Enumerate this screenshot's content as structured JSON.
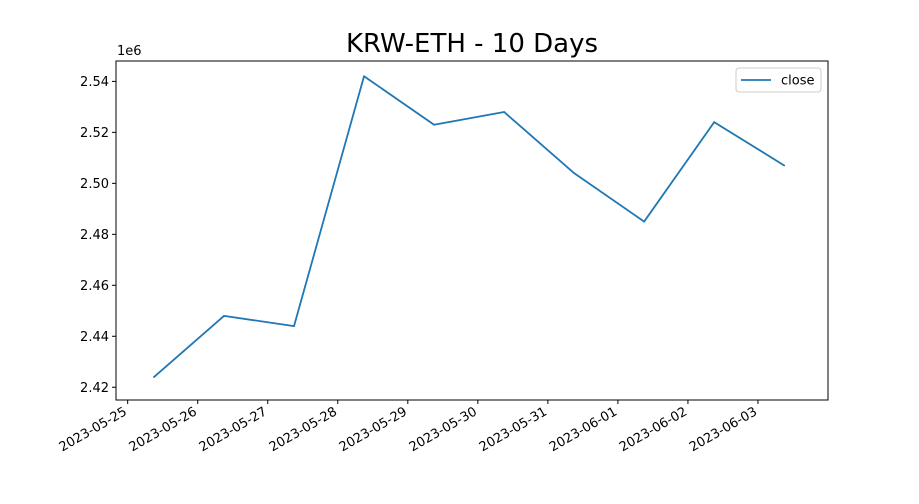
{
  "chart_data": {
    "type": "line",
    "title": "KRW-ETH - 10 Days",
    "xlabel": "",
    "ylabel": "",
    "y_offset_label": "1e6",
    "x_tick_labels": [
      "2023-05-25",
      "2023-05-26",
      "2023-05-27",
      "2023-05-28",
      "2023-05-29",
      "2023-05-30",
      "2023-05-31",
      "2023-06-01",
      "2023-06-02",
      "2023-06-03"
    ],
    "y_tick_labels": [
      "2.42",
      "2.44",
      "2.46",
      "2.48",
      "2.50",
      "2.52",
      "2.54"
    ],
    "y_ticks": [
      2420000,
      2440000,
      2460000,
      2480000,
      2500000,
      2520000,
      2540000
    ],
    "ylim": [
      2415000,
      2548000
    ],
    "xlim": [
      "2023-05-24T20:00",
      "2023-06-04T00:00"
    ],
    "grid": false,
    "legend_position": "top-right",
    "x": [
      "2023-05-25T09:00",
      "2023-05-26T09:00",
      "2023-05-27T09:00",
      "2023-05-28T09:00",
      "2023-05-29T09:00",
      "2023-05-30T09:00",
      "2023-05-31T09:00",
      "2023-06-01T09:00",
      "2023-06-02T09:00",
      "2023-06-03T09:00"
    ],
    "series": [
      {
        "name": "close",
        "color": "#1f77b4",
        "values": [
          2424000,
          2448000,
          2444000,
          2542000,
          2523000,
          2528000,
          2504000,
          2485000,
          2524000,
          2507000
        ]
      }
    ]
  }
}
